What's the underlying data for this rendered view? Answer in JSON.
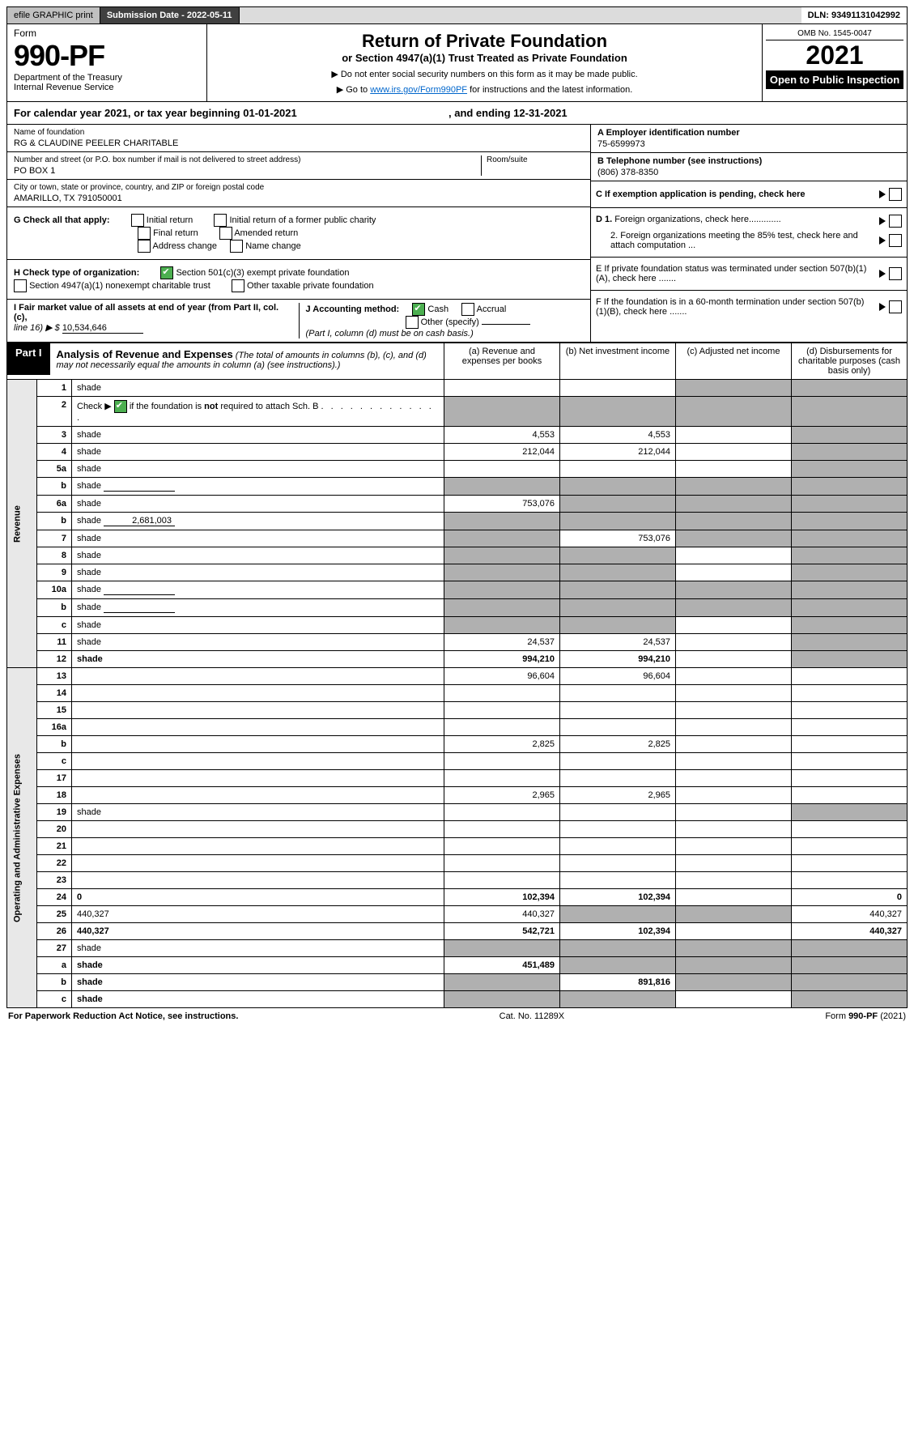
{
  "top_bar": {
    "efile": "efile GRAPHIC print",
    "submission_label": "Submission Date - 2022-05-11",
    "dln": "DLN: 93491131042992"
  },
  "header": {
    "form_label": "Form",
    "form_number": "990-PF",
    "dept1": "Department of the Treasury",
    "dept2": "Internal Revenue Service",
    "title": "Return of Private Foundation",
    "subtitle": "or Section 4947(a)(1) Trust Treated as Private Foundation",
    "instr1": "▶ Do not enter social security numbers on this form as it may be made public.",
    "instr2_pre": "▶ Go to ",
    "instr2_link": "www.irs.gov/Form990PF",
    "instr2_post": " for instructions and the latest information.",
    "omb": "OMB No. 1545-0047",
    "year": "2021",
    "inspection": "Open to Public Inspection"
  },
  "cal_year": {
    "text_pre": "For calendar year 2021, or tax year beginning ",
    "begin": "01-01-2021",
    "text_mid": " , and ending ",
    "end": "12-31-2021"
  },
  "id": {
    "name_label": "Name of foundation",
    "name": "RG & CLAUDINE PEELER CHARITABLE",
    "addr_label": "Number and street (or P.O. box number if mail is not delivered to street address)",
    "room_label": "Room/suite",
    "addr": "PO BOX 1",
    "city_label": "City or town, state or province, country, and ZIP or foreign postal code",
    "city": "AMARILLO, TX  791050001",
    "a_label": "A Employer identification number",
    "a_val": "75-6599973",
    "b_label": "B Telephone number (see instructions)",
    "b_val": "(806) 378-8350",
    "c_label": "C If exemption application is pending, check here",
    "d1_label": "D 1. Foreign organizations, check here.............",
    "d2_label": "2. Foreign organizations meeting the 85% test, check here and attach computation ...",
    "e_label": "E  If private foundation status was terminated under section 507(b)(1)(A), check here .......",
    "f_label": "F  If the foundation is in a 60-month termination under section 507(b)(1)(B), check here .......",
    "g_label": "G Check all that apply:",
    "g_opts": [
      "Initial return",
      "Initial return of a former public charity",
      "Final return",
      "Amended return",
      "Address change",
      "Name change"
    ],
    "h_label": "H Check type of organization:",
    "h_opt1": "Section 501(c)(3) exempt private foundation",
    "h_opt2": "Section 4947(a)(1) nonexempt charitable trust",
    "h_opt3": "Other taxable private foundation",
    "i_label": "I Fair market value of all assets at end of year (from Part II, col. (c),",
    "i_line": "line 16) ▶ $",
    "i_val": "10,534,646",
    "j_label": "J Accounting method:",
    "j_cash": "Cash",
    "j_accrual": "Accrual",
    "j_other": "Other (specify)",
    "j_note": "(Part I, column (d) must be on cash basis.)"
  },
  "part1": {
    "label": "Part I",
    "title": "Analysis of Revenue and Expenses",
    "title_note": " (The total of amounts in columns (b), (c), and (d) may not necessarily equal the amounts in column (a) (see instructions).)",
    "col_a": "(a)    Revenue and expenses per books",
    "col_b": "(b)    Net investment income",
    "col_c": "(c)   Adjusted net income",
    "col_d": "(d)   Disbursements for charitable purposes (cash basis only)",
    "side_revenue": "Revenue",
    "side_expenses": "Operating and Administrative Expenses"
  },
  "rows": [
    {
      "n": "1",
      "d": "shade",
      "a": "",
      "b": "",
      "c": "shade"
    },
    {
      "n": "2",
      "d": "shade",
      "a": "shade",
      "b": "shade",
      "c": "shade",
      "checked": true
    },
    {
      "n": "3",
      "d": "shade",
      "a": "4,553",
      "b": "4,553",
      "c": ""
    },
    {
      "n": "4",
      "d": "shade",
      "a": "212,044",
      "b": "212,044",
      "c": ""
    },
    {
      "n": "5a",
      "d": "shade",
      "a": "",
      "b": "",
      "c": ""
    },
    {
      "n": "b",
      "d": "shade",
      "a": "shade",
      "b": "shade",
      "c": "shade",
      "sub": true
    },
    {
      "n": "6a",
      "d": "shade",
      "a": "753,076",
      "b": "shade",
      "c": "shade"
    },
    {
      "n": "b",
      "d": "shade",
      "a": "shade",
      "b": "shade",
      "c": "shade",
      "sub": true,
      "subval": "2,681,003"
    },
    {
      "n": "7",
      "d": "shade",
      "a": "shade",
      "b": "753,076",
      "c": "shade"
    },
    {
      "n": "8",
      "d": "shade",
      "a": "shade",
      "b": "shade",
      "c": ""
    },
    {
      "n": "9",
      "d": "shade",
      "a": "shade",
      "b": "shade",
      "c": ""
    },
    {
      "n": "10a",
      "d": "shade",
      "a": "shade",
      "b": "shade",
      "c": "shade",
      "sub": true
    },
    {
      "n": "b",
      "d": "shade",
      "a": "shade",
      "b": "shade",
      "c": "shade",
      "sub": true
    },
    {
      "n": "c",
      "d": "shade",
      "a": "shade",
      "b": "shade",
      "c": ""
    },
    {
      "n": "11",
      "d": "shade",
      "a": "24,537",
      "b": "24,537",
      "c": ""
    },
    {
      "n": "12",
      "d": "shade",
      "a": "994,210",
      "b": "994,210",
      "c": "",
      "bold": true
    },
    {
      "n": "13",
      "d": "",
      "a": "96,604",
      "b": "96,604",
      "c": ""
    },
    {
      "n": "14",
      "d": "",
      "a": "",
      "b": "",
      "c": ""
    },
    {
      "n": "15",
      "d": "",
      "a": "",
      "b": "",
      "c": ""
    },
    {
      "n": "16a",
      "d": "",
      "a": "",
      "b": "",
      "c": ""
    },
    {
      "n": "b",
      "d": "",
      "a": "2,825",
      "b": "2,825",
      "c": ""
    },
    {
      "n": "c",
      "d": "",
      "a": "",
      "b": "",
      "c": ""
    },
    {
      "n": "17",
      "d": "",
      "a": "",
      "b": "",
      "c": ""
    },
    {
      "n": "18",
      "d": "",
      "a": "2,965",
      "b": "2,965",
      "c": ""
    },
    {
      "n": "19",
      "d": "shade",
      "a": "",
      "b": "",
      "c": ""
    },
    {
      "n": "20",
      "d": "",
      "a": "",
      "b": "",
      "c": ""
    },
    {
      "n": "21",
      "d": "",
      "a": "",
      "b": "",
      "c": ""
    },
    {
      "n": "22",
      "d": "",
      "a": "",
      "b": "",
      "c": ""
    },
    {
      "n": "23",
      "d": "",
      "a": "",
      "b": "",
      "c": ""
    },
    {
      "n": "24",
      "d": "0",
      "a": "102,394",
      "b": "102,394",
      "c": "",
      "bold": true
    },
    {
      "n": "25",
      "d": "440,327",
      "a": "440,327",
      "b": "shade",
      "c": "shade"
    },
    {
      "n": "26",
      "d": "440,327",
      "a": "542,721",
      "b": "102,394",
      "c": "",
      "bold": true
    },
    {
      "n": "27",
      "d": "shade",
      "a": "shade",
      "b": "shade",
      "c": "shade"
    },
    {
      "n": "a",
      "d": "shade",
      "a": "451,489",
      "b": "shade",
      "c": "shade",
      "bold": true
    },
    {
      "n": "b",
      "d": "shade",
      "a": "shade",
      "b": "891,816",
      "c": "shade",
      "bold": true
    },
    {
      "n": "c",
      "d": "shade",
      "a": "shade",
      "b": "shade",
      "c": "",
      "bold": true
    }
  ],
  "footer": {
    "left": "For Paperwork Reduction Act Notice, see instructions.",
    "mid": "Cat. No. 11289X",
    "right": "Form 990-PF (2021)"
  }
}
